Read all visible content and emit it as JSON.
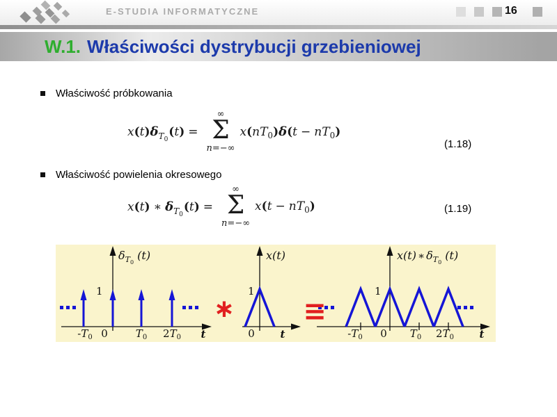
{
  "colors": {
    "title_green": "#2fae2f",
    "title_blue": "#1c3aab",
    "figure_background": "#faf4cc",
    "figure_blue": "#1515d6",
    "figure_red": "#e11f1f",
    "brand_gray": "#ababab"
  },
  "header": {
    "brand": "E-STUDIA INFORMATYCZNE",
    "page_number": "16"
  },
  "title": {
    "prefix": "W.1.",
    "text": "Właściwości dystrybucji grzebieniowej"
  },
  "bullets": {
    "b1": "Właściwość próbkowania",
    "b2": "Właściwość powielenia okresowego"
  },
  "eq1": {
    "label": "(1.18)",
    "left_tokens": [
      {
        "t": "x",
        "c": "v"
      },
      {
        "t": "(",
        "c": "p"
      },
      {
        "t": "t",
        "c": "v"
      },
      {
        "t": ")",
        "c": "p"
      },
      {
        "t": "δ",
        "c": "d"
      },
      {
        "t": "T",
        "c": "s"
      },
      {
        "t": "0",
        "c": "ss"
      },
      {
        "t": "(",
        "c": "p"
      },
      {
        "t": "t",
        "c": "v"
      },
      {
        "t": ")",
        "c": "p"
      },
      {
        "t": "=",
        "c": "o"
      }
    ],
    "sum_top": "∞",
    "sigma": "Σ",
    "sum_bottom_tokens": [
      {
        "t": "n",
        "c": "bv"
      },
      {
        "t": "=−∞",
        "c": "bo"
      }
    ],
    "right_tokens": [
      {
        "t": "x",
        "c": "v"
      },
      {
        "t": "(",
        "c": "p"
      },
      {
        "t": "n",
        "c": "v"
      },
      {
        "t": "T",
        "c": "v"
      },
      {
        "t": "0",
        "c": "s0"
      },
      {
        "t": ")",
        "c": "p"
      },
      {
        "t": "δ",
        "c": "d"
      },
      {
        "t": "(",
        "c": "p"
      },
      {
        "t": "t",
        "c": "v"
      },
      {
        "t": "−",
        "c": "o"
      },
      {
        "t": "n",
        "c": "v"
      },
      {
        "t": "T",
        "c": "v"
      },
      {
        "t": "0",
        "c": "s0"
      },
      {
        "t": ")",
        "c": "p"
      }
    ]
  },
  "eq2": {
    "label": "(1.19)",
    "left_tokens": [
      {
        "t": "x",
        "c": "v"
      },
      {
        "t": "(",
        "c": "p"
      },
      {
        "t": "t",
        "c": "v"
      },
      {
        "t": ")",
        "c": "p"
      },
      {
        "t": "∗",
        "c": "o"
      },
      {
        "t": "δ",
        "c": "d"
      },
      {
        "t": "T",
        "c": "s"
      },
      {
        "t": "0",
        "c": "ss"
      },
      {
        "t": "(",
        "c": "p"
      },
      {
        "t": "t",
        "c": "v"
      },
      {
        "t": ")",
        "c": "p"
      },
      {
        "t": "=",
        "c": "o"
      }
    ],
    "sum_top": "∞",
    "sigma": "Σ",
    "sum_bottom_tokens": [
      {
        "t": "n",
        "c": "bv"
      },
      {
        "t": "=−∞",
        "c": "bo"
      }
    ],
    "right_tokens": [
      {
        "t": "x",
        "c": "v"
      },
      {
        "t": "(",
        "c": "p"
      },
      {
        "t": "t",
        "c": "v"
      },
      {
        "t": "−",
        "c": "o"
      },
      {
        "t": "n",
        "c": "v"
      },
      {
        "t": "T",
        "c": "v"
      },
      {
        "t": "0",
        "c": "s0"
      },
      {
        "t": ")",
        "c": "p"
      }
    ]
  },
  "figure": {
    "left_panel": {
      "y_label_tokens": [
        {
          "t": "δ",
          "c": "fv"
        },
        {
          "t": "T",
          "c": "fs"
        },
        {
          "t": "0",
          "c": "fss"
        },
        {
          "t": " (t)",
          "c": "fv"
        }
      ],
      "one": "1",
      "ticks": {
        "t1": [
          {
            "t": "-",
            "c": "to"
          },
          {
            "t": "T",
            "c": "tv"
          },
          {
            "t": "0",
            "c": "ts"
          }
        ],
        "t2": [
          {
            "t": "0",
            "c": "to"
          }
        ],
        "t3": [
          {
            "t": "T",
            "c": "tv"
          },
          {
            "t": "0",
            "c": "ts"
          }
        ],
        "t4": [
          {
            "t": "2",
            "c": "to"
          },
          {
            "t": "T",
            "c": "tv"
          },
          {
            "t": "0",
            "c": "ts"
          }
        ]
      },
      "t_label": "t"
    },
    "mid_panel": {
      "y_label_tokens": [
        {
          "t": "x(t)",
          "c": "fv"
        }
      ],
      "one": "1",
      "ticks": {
        "t0": [
          {
            "t": "0",
            "c": "to"
          }
        ]
      },
      "t_label": "t"
    },
    "right_panel": {
      "y_label_tokens": [
        {
          "t": "x(t)",
          "c": "fv"
        },
        {
          "t": "∗",
          "c": "fop"
        },
        {
          "t": "δ",
          "c": "fv"
        },
        {
          "t": "T",
          "c": "fs"
        },
        {
          "t": "0",
          "c": "fss"
        },
        {
          "t": " (t)",
          "c": "fv"
        }
      ],
      "one": "1",
      "ticks": {
        "t1": [
          {
            "t": "-",
            "c": "to"
          },
          {
            "t": "T",
            "c": "tv"
          },
          {
            "t": "0",
            "c": "ts"
          }
        ],
        "t2": [
          {
            "t": "0",
            "c": "to"
          }
        ],
        "t3": [
          {
            "t": "T",
            "c": "tv"
          },
          {
            "t": "0",
            "c": "ts"
          }
        ],
        "t4": [
          {
            "t": "2",
            "c": "to"
          },
          {
            "t": "T",
            "c": "tv"
          },
          {
            "t": "0",
            "c": "ts"
          }
        ]
      },
      "t_label": "t"
    },
    "operators": {
      "convolution": "∗",
      "identity": "≡"
    }
  }
}
